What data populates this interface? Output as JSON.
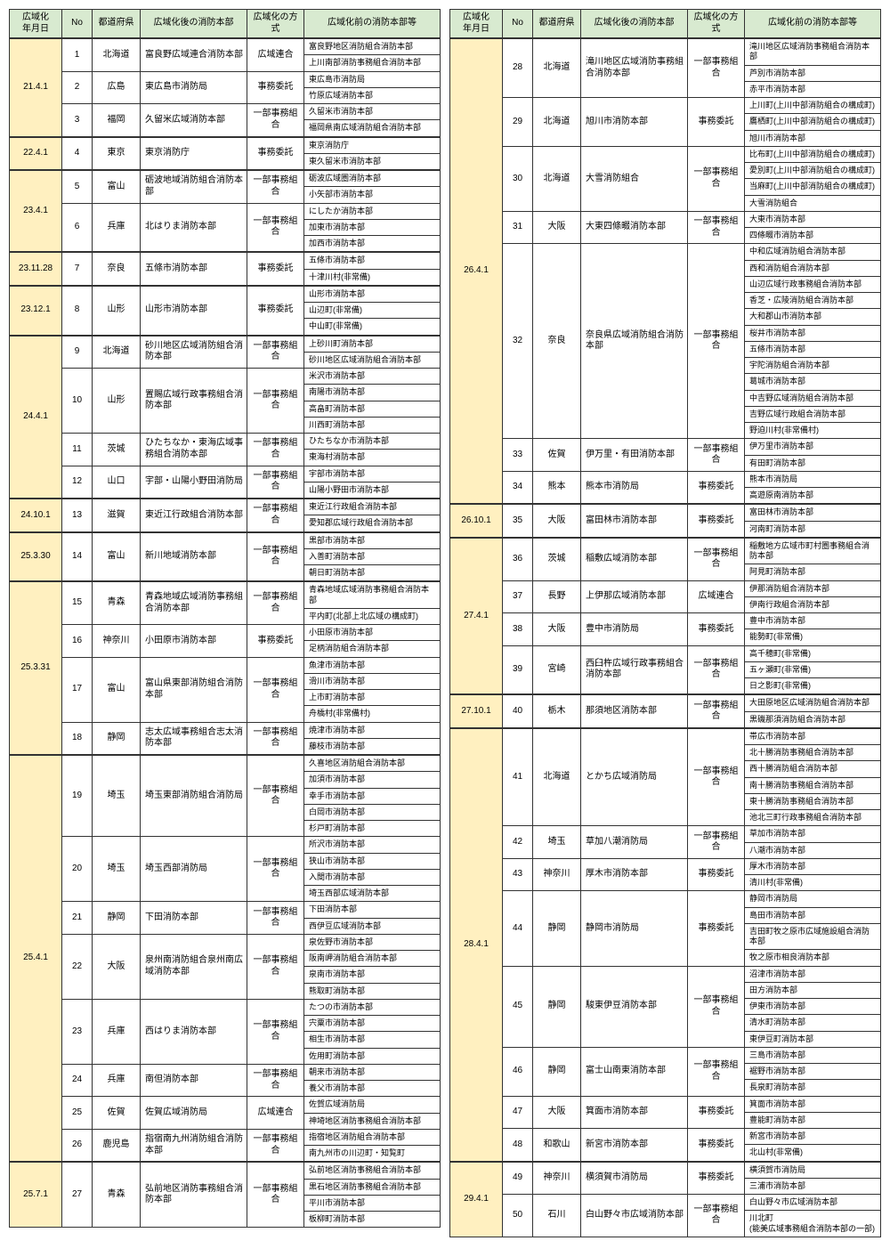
{
  "headers": [
    "広域化\n年月日",
    "No",
    "都道府県",
    "広域化後の消防本部",
    "広域化の方式",
    "広域化前の消防本部等"
  ],
  "left": [
    {
      "date": "21.4.1",
      "rows": [
        {
          "no": 1,
          "pref": "北海道",
          "after": "富良野広域連合消防本部",
          "method": "広域連合",
          "before": [
            "富良野地区消防組合消防本部",
            "上川南部消防事務組合消防本部"
          ]
        },
        {
          "no": 2,
          "pref": "広島",
          "after": "東広島市消防局",
          "method": "事務委託",
          "before": [
            "東広島市消防局",
            "竹原広域消防本部"
          ]
        },
        {
          "no": 3,
          "pref": "福岡",
          "after": "久留米広域消防本部",
          "method": "一部事務組合",
          "before": [
            "久留米市消防本部",
            "福岡県南広域消防組合消防本部"
          ]
        }
      ]
    },
    {
      "date": "22.4.1",
      "rows": [
        {
          "no": 4,
          "pref": "東京",
          "after": "東京消防庁",
          "method": "事務委託",
          "before": [
            "東京消防庁",
            "東久留米市消防本部"
          ]
        }
      ]
    },
    {
      "date": "23.4.1",
      "rows": [
        {
          "no": 5,
          "pref": "富山",
          "after": "砺波地域消防組合消防本部",
          "method": "一部事務組合",
          "before": [
            "砺波広域圏消防本部",
            "小矢部市消防本部"
          ]
        },
        {
          "no": 6,
          "pref": "兵庫",
          "after": "北はりま消防本部",
          "method": "一部事務組合",
          "before": [
            "にしたか消防本部",
            "加東市消防本部",
            "加西市消防本部"
          ]
        }
      ]
    },
    {
      "date": "23.11.28",
      "rows": [
        {
          "no": 7,
          "pref": "奈良",
          "after": "五條市消防本部",
          "method": "事務委託",
          "before": [
            "五條市消防本部",
            "十津川村(非常備)"
          ]
        }
      ]
    },
    {
      "date": "23.12.1",
      "rows": [
        {
          "no": 8,
          "pref": "山形",
          "after": "山形市消防本部",
          "method": "事務委託",
          "before": [
            "山形市消防本部",
            "山辺町(非常備)",
            "中山町(非常備)"
          ]
        }
      ]
    },
    {
      "date": "24.4.1",
      "rows": [
        {
          "no": 9,
          "pref": "北海道",
          "after": "砂川地区広域消防組合消防本部",
          "method": "一部事務組合",
          "before": [
            "上砂川町消防本部",
            "砂川地区広域消防組合消防本部"
          ]
        },
        {
          "no": 10,
          "pref": "山形",
          "after": "置賜広域行政事務組合消防本部",
          "method": "一部事務組合",
          "before": [
            "米沢市消防本部",
            "南陽市消防本部",
            "高畠町消防本部",
            "川西町消防本部"
          ]
        },
        {
          "no": 11,
          "pref": "茨城",
          "after": "ひたちなか・東海広域事務組合消防本部",
          "method": "一部事務組合",
          "before": [
            "ひたちなか市消防本部",
            "東海村消防本部"
          ]
        },
        {
          "no": 12,
          "pref": "山口",
          "after": "宇部・山陽小野田消防局",
          "method": "一部事務組合",
          "before": [
            "宇部市消防本部",
            "山陽小野田市消防本部"
          ]
        }
      ]
    },
    {
      "date": "24.10.1",
      "rows": [
        {
          "no": 13,
          "pref": "滋賀",
          "after": "東近江行政組合消防本部",
          "method": "一部事務組合",
          "before": [
            "東近江行政組合消防本部",
            "愛知郡広域行政組合消防本部"
          ]
        }
      ]
    },
    {
      "date": "25.3.30",
      "rows": [
        {
          "no": 14,
          "pref": "富山",
          "after": "新川地域消防本部",
          "method": "一部事務組合",
          "before": [
            "黒部市消防本部",
            "入善町消防本部",
            "朝日町消防本部"
          ]
        }
      ]
    },
    {
      "date": "25.3.31",
      "rows": [
        {
          "no": 15,
          "pref": "青森",
          "after": "青森地域広域消防事務組合消防本部",
          "method": "一部事務組合",
          "before": [
            "青森地域広域消防事務組合消防本部",
            "平内町(北部上北広域の構成町)"
          ]
        },
        {
          "no": 16,
          "pref": "神奈川",
          "after": "小田原市消防本部",
          "method": "事務委託",
          "before": [
            "小田原市消防本部",
            "足柄消防組合消防本部"
          ]
        },
        {
          "no": 17,
          "pref": "富山",
          "after": "富山県東部消防組合消防本部",
          "method": "一部事務組合",
          "before": [
            "魚津市消防本部",
            "滑川市消防本部",
            "上市町消防本部",
            "舟橋村(非常備村)"
          ]
        },
        {
          "no": 18,
          "pref": "静岡",
          "after": "志太広域事務組合志太消防本部",
          "method": "一部事務組合",
          "before": [
            "焼津市消防本部",
            "藤枝市消防本部"
          ]
        }
      ]
    },
    {
      "date": "25.4.1",
      "rows": [
        {
          "no": 19,
          "pref": "埼玉",
          "after": "埼玉東部消防組合消防局",
          "method": "一部事務組合",
          "before": [
            "久喜地区消防組合消防本部",
            "加須市消防本部",
            "幸手市消防本部",
            "白岡市消防本部",
            "杉戸町消防本部"
          ]
        },
        {
          "no": 20,
          "pref": "埼玉",
          "after": "埼玉西部消防局",
          "method": "一部事務組合",
          "before": [
            "所沢市消防本部",
            "狭山市消防本部",
            "入間市消防本部",
            "埼玉西部広域消防本部"
          ]
        },
        {
          "no": 21,
          "pref": "静岡",
          "after": "下田消防本部",
          "method": "一部事務組合",
          "before": [
            "下田消防本部",
            "西伊豆広域消防本部"
          ]
        },
        {
          "no": 22,
          "pref": "大阪",
          "after": "泉州南消防組合泉州南広域消防本部",
          "method": "一部事務組合",
          "before": [
            "泉佐野市消防本部",
            "阪南岬消防組合消防本部",
            "泉南市消防本部",
            "熊取町消防本部"
          ]
        },
        {
          "no": 23,
          "pref": "兵庫",
          "after": "西はりま消防本部",
          "method": "一部事務組合",
          "before": [
            "たつの市消防本部",
            "宍粟市消防本部",
            "相生市消防本部",
            "佐用町消防本部"
          ]
        },
        {
          "no": 24,
          "pref": "兵庫",
          "after": "南但消防本部",
          "method": "一部事務組合",
          "before": [
            "朝来市消防本部",
            "養父市消防本部"
          ]
        },
        {
          "no": 25,
          "pref": "佐賀",
          "after": "佐賀広域消防局",
          "method": "広域連合",
          "before": [
            "佐賀広域消防局",
            "神埼地区消防事務組合消防本部"
          ]
        },
        {
          "no": 26,
          "pref": "鹿児島",
          "after": "指宿南九州消防組合消防本部",
          "method": "一部事務組合",
          "before": [
            "指宿地区消防組合消防本部",
            "南九州市の川辺町・知覧町"
          ]
        }
      ]
    },
    {
      "date": "25.7.1",
      "rows": [
        {
          "no": 27,
          "pref": "青森",
          "after": "弘前地区消防事務組合消防本部",
          "method": "一部事務組合",
          "before": [
            "弘前地区消防事務組合消防本部",
            "黒石地区消防事務組合消防本部",
            "平川市消防本部",
            "板柳町消防本部"
          ]
        }
      ]
    }
  ],
  "right": [
    {
      "date": "26.4.1",
      "rows": [
        {
          "no": 28,
          "pref": "北海道",
          "after": "滝川地区広域消防事務組合消防本部",
          "method": "一部事務組合",
          "before": [
            "滝川地区広域消防事務組合消防本部",
            "芦別市消防本部",
            "赤平市消防本部"
          ]
        },
        {
          "no": 29,
          "pref": "北海道",
          "after": "旭川市消防本部",
          "method": "事務委託",
          "before": [
            "上川町(上川中部消防組合の構成町)",
            "鷹栖町(上川中部消防組合の構成町)",
            "旭川市消防本部"
          ]
        },
        {
          "no": 30,
          "pref": "北海道",
          "after": "大雪消防組合",
          "method": "一部事務組合",
          "before": [
            "比布町(上川中部消防組合の構成町)",
            "愛別町(上川中部消防組合の構成町)",
            "当麻町(上川中部消防組合の構成町)",
            "大雪消防組合"
          ]
        },
        {
          "no": 31,
          "pref": "大阪",
          "after": "大東四條畷消防本部",
          "method": "一部事務組合",
          "before": [
            "大東市消防本部",
            "四條畷市消防本部"
          ]
        },
        {
          "no": 32,
          "pref": "奈良",
          "after": "奈良県広域消防組合消防本部",
          "method": "一部事務組合",
          "before": [
            "中和広域消防組合消防本部",
            "西和消防組合消防本部",
            "山辺広域行政事務組合消防本部",
            "香芝・広陵消防組合消防本部",
            "大和郡山市消防本部",
            "桜井市消防本部",
            "五條市消防本部",
            "宇陀消防組合消防本部",
            "葛城市消防本部",
            "中吉野広域消防組合消防本部",
            "吉野広域行政組合消防本部",
            "野迫川村(非常備村)"
          ]
        },
        {
          "no": 33,
          "pref": "佐賀",
          "after": "伊万里・有田消防本部",
          "method": "一部事務組合",
          "before": [
            "伊万里市消防本部",
            "有田町消防本部"
          ]
        },
        {
          "no": 34,
          "pref": "熊本",
          "after": "熊本市消防局",
          "method": "事務委託",
          "before": [
            "熊本市消防局",
            "高遊原南消防本部"
          ]
        }
      ]
    },
    {
      "date": "26.10.1",
      "rows": [
        {
          "no": 35,
          "pref": "大阪",
          "after": "富田林市消防本部",
          "method": "事務委託",
          "before": [
            "富田林市消防本部",
            "河南町消防本部"
          ]
        }
      ]
    },
    {
      "date": "27.4.1",
      "rows": [
        {
          "no": 36,
          "pref": "茨城",
          "after": "稲敷広域消防本部",
          "method": "一部事務組合",
          "before": [
            "稲敷地方広域市町村圏事務組合消防本部",
            "阿見町消防本部"
          ]
        },
        {
          "no": 37,
          "pref": "長野",
          "after": "上伊那広域消防本部",
          "method": "広域連合",
          "before": [
            "伊那消防組合消防本部",
            "伊南行政組合消防本部"
          ]
        },
        {
          "no": 38,
          "pref": "大阪",
          "after": "豊中市消防局",
          "method": "事務委託",
          "before": [
            "豊中市消防本部",
            "能勢町(非常備)"
          ]
        },
        {
          "no": 39,
          "pref": "宮崎",
          "after": "西臼杵広域行政事務組合消防本部",
          "method": "一部事務組合",
          "before": [
            "高千穂町(非常備)",
            "五ヶ瀬町(非常備)",
            "日之影町(非常備)"
          ]
        }
      ]
    },
    {
      "date": "27.10.1",
      "rows": [
        {
          "no": 40,
          "pref": "栃木",
          "after": "那須地区消防本部",
          "method": "一部事務組合",
          "before": [
            "大田原地区広域消防組合消防本部",
            "黒磯那須消防組合消防本部"
          ]
        }
      ]
    },
    {
      "date": "28.4.1",
      "rows": [
        {
          "no": 41,
          "pref": "北海道",
          "after": "とかち広域消防局",
          "method": "一部事務組合",
          "before": [
            "帯広市消防本部",
            "北十勝消防事務組合消防本部",
            "西十勝消防組合消防本部",
            "南十勝消防事務組合消防本部",
            "東十勝消防事務組合消防本部",
            "池北三町行政事務組合消防本部"
          ]
        },
        {
          "no": 42,
          "pref": "埼玉",
          "after": "草加八潮消防局",
          "method": "一部事務組合",
          "before": [
            "草加市消防本部",
            "八潮市消防本部"
          ]
        },
        {
          "no": 43,
          "pref": "神奈川",
          "after": "厚木市消防本部",
          "method": "事務委託",
          "before": [
            "厚木市消防本部",
            "清川村(非常備)"
          ]
        },
        {
          "no": 44,
          "pref": "静岡",
          "after": "静岡市消防局",
          "method": "事務委託",
          "before": [
            "静岡市消防局",
            "島田市消防本部",
            "吉田町牧之原市広域施設組合消防本部",
            "牧之原市相良消防本部"
          ]
        },
        {
          "no": 45,
          "pref": "静岡",
          "after": "駿東伊豆消防本部",
          "method": "一部事務組合",
          "before": [
            "沼津市消防本部",
            "田方消防本部",
            "伊東市消防本部",
            "清水町消防本部",
            "東伊豆町消防本部"
          ]
        },
        {
          "no": 46,
          "pref": "静岡",
          "after": "富士山南東消防本部",
          "method": "一部事務組合",
          "before": [
            "三島市消防本部",
            "裾野市消防本部",
            "長泉町消防本部"
          ]
        },
        {
          "no": 47,
          "pref": "大阪",
          "after": "箕面市消防本部",
          "method": "事務委託",
          "before": [
            "箕面市消防本部",
            "豊能町消防本部"
          ]
        },
        {
          "no": 48,
          "pref": "和歌山",
          "after": "新宮市消防本部",
          "method": "事務委託",
          "before": [
            "新宮市消防本部",
            "北山村(非常備)"
          ]
        }
      ]
    },
    {
      "date": "29.4.1",
      "rows": [
        {
          "no": 49,
          "pref": "神奈川",
          "after": "横須賀市消防局",
          "method": "事務委託",
          "before": [
            "横須賀市消防局",
            "三浦市消防本部"
          ]
        },
        {
          "no": 50,
          "pref": "石川",
          "after": "白山野々市広域消防本部",
          "method": "一部事務組合",
          "before": [
            "白山野々市広域消防本部",
            "川北町\n(能美広域事務組合消防本部の一部)"
          ]
        }
      ]
    }
  ]
}
